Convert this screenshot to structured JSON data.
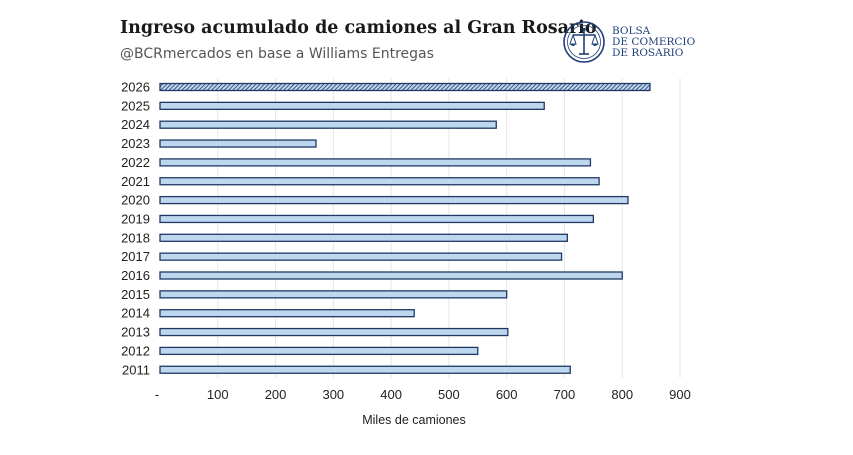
{
  "header": {
    "title": "Ingreso acumulado de camiones al Gran Rosario",
    "subtitle": "@BCRmercados en base a Williams Entregas"
  },
  "logo": {
    "line1": "BOLSA",
    "line2": "DE COMERCIO",
    "line3": "DE ROSARIO",
    "icon": "scales-of-justice-seal-icon",
    "color": "#1f3f7a"
  },
  "chart_data": {
    "type": "bar",
    "orientation": "horizontal",
    "title": "Ingreso acumulado de camiones al Gran Rosario",
    "subtitle": "@BCRmercados en base a Williams Entregas",
    "xlabel": "Miles de camiones",
    "ylabel": "",
    "xlim": [
      0,
      900
    ],
    "xticks": [
      0,
      100,
      200,
      300,
      400,
      500,
      600,
      700,
      800,
      900
    ],
    "xtick_labels": [
      "-",
      "100",
      "200",
      "300",
      "400",
      "500",
      "600",
      "700",
      "800",
      "900"
    ],
    "grid": "vertical",
    "legend": "none",
    "categories": [
      "2026",
      "2025",
      "2024",
      "2023",
      "2022",
      "2021",
      "2020",
      "2019",
      "2018",
      "2017",
      "2016",
      "2015",
      "2014",
      "2013",
      "2012",
      "2011"
    ],
    "values": [
      848,
      665,
      582,
      270,
      745,
      760,
      810,
      750,
      705,
      695,
      800,
      600,
      440,
      602,
      550,
      710
    ],
    "highlight_category": "2026",
    "colors": {
      "bar_fill": "#bdd7ee",
      "bar_stroke": "#1f3864",
      "highlight_hatch": "#1f3864",
      "grid": "#e6e6e6"
    }
  }
}
